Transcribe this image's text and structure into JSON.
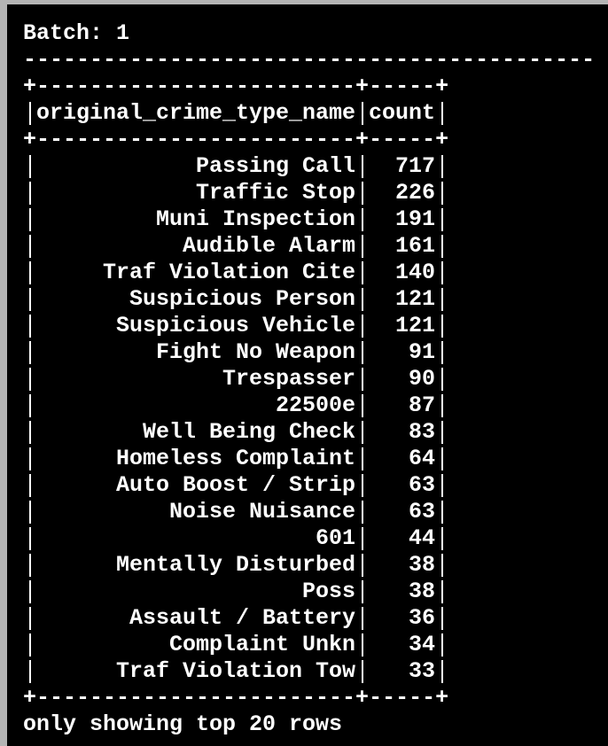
{
  "header": {
    "batch": "Batch: 1",
    "separator": "-------------------------------------------"
  },
  "table": {
    "border": "+------------------------+-----+",
    "columns": [
      "original_crime_type_name",
      "count"
    ],
    "rows": [
      [
        "Passing Call",
        717
      ],
      [
        "Traffic Stop",
        226
      ],
      [
        "Muni Inspection",
        191
      ],
      [
        "Audible Alarm",
        161
      ],
      [
        "Traf Violation Cite",
        140
      ],
      [
        "Suspicious Person",
        121
      ],
      [
        "Suspicious Vehicle",
        121
      ],
      [
        "Fight No Weapon",
        91
      ],
      [
        "Trespasser",
        90
      ],
      [
        "22500e",
        87
      ],
      [
        "Well Being Check",
        83
      ],
      [
        "Homeless Complaint",
        64
      ],
      [
        "Auto Boost / Strip",
        63
      ],
      [
        "Noise Nuisance",
        63
      ],
      [
        "601",
        44
      ],
      [
        "Mentally Disturbed",
        38
      ],
      [
        "Poss",
        38
      ],
      [
        "Assault / Battery",
        36
      ],
      [
        "Complaint Unkn",
        34
      ],
      [
        "Traf Violation Tow",
        33
      ]
    ]
  },
  "footer": "only showing top 20 rows"
}
